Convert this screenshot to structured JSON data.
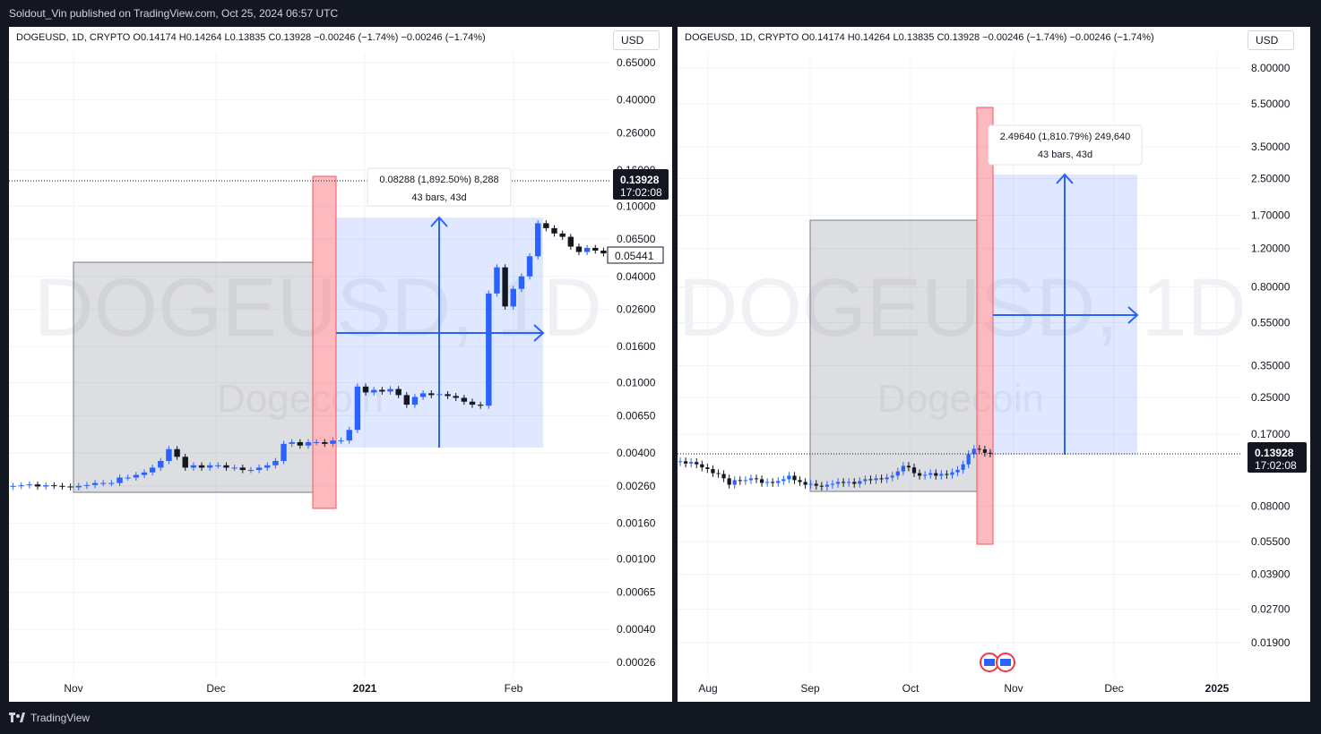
{
  "publish_line": "Soldout_Vin published on TradingView.com, Oct 25, 2024 06:57 UTC",
  "brand": "TradingView",
  "colors": {
    "up": "#2962ff",
    "down": "#131722",
    "range_box": "#2962ff",
    "red_bar": "#f7525f",
    "gray_box": "#787b86"
  },
  "chart_data": [
    {
      "type": "candlestick",
      "symbol_line": "DOGEUSD, 1D, CRYPTO  O0.14174  H0.14264  L0.13835  C0.13928  −0.00246 (−1.74%)  −0.00246 (−1.74%)",
      "currency": "USD",
      "scale": "log",
      "watermark": "DOGEUSD, 1D",
      "watermark_sub": "Dogecoin",
      "y_ticks": [
        "0.65000",
        "0.40000",
        "0.26000",
        "0.16000",
        "0.10000",
        "0.06500",
        "0.04000",
        "0.02600",
        "0.01600",
        "0.01000",
        "0.00650",
        "0.00400",
        "0.00260",
        "0.00160",
        "0.00100",
        "0.00065",
        "0.00040",
        "0.00026"
      ],
      "x_ticks": [
        "Nov",
        "Dec",
        "2021",
        "Feb"
      ],
      "x_tick_bold": [
        false,
        false,
        true,
        false
      ],
      "last_price": "0.13928",
      "countdown": "17:02:08",
      "secondary_price": "0.05441",
      "measure_line1": "0.08288 (1,892.50%) 8,288",
      "measure_line2": "43 bars, 43d",
      "candles_daily_close": [
        0.0026,
        0.00262,
        0.00265,
        0.00258,
        0.00262,
        0.0026,
        0.00258,
        0.00255,
        0.0026,
        0.00263,
        0.0027,
        0.0027,
        0.0027,
        0.0029,
        0.0029,
        0.003,
        0.0031,
        0.0033,
        0.0036,
        0.0042,
        0.0038,
        0.0033,
        0.0034,
        0.0033,
        0.0034,
        0.0034,
        0.0033,
        0.0033,
        0.0032,
        0.0032,
        0.0033,
        0.0034,
        0.0036,
        0.0045,
        0.0046,
        0.0044,
        0.0046,
        0.0046,
        0.0045,
        0.0047,
        0.0047,
        0.0054,
        0.0095,
        0.0088,
        0.0091,
        0.0089,
        0.0092,
        0.0085,
        0.0075,
        0.0083,
        0.0087,
        0.0085,
        0.0086,
        0.0084,
        0.0082,
        0.0078,
        0.0075,
        0.0074,
        0.032,
        0.045,
        0.027,
        0.034,
        0.04,
        0.052,
        0.08,
        0.075,
        0.07,
        0.067,
        0.059,
        0.055,
        0.058,
        0.056,
        0.054
      ]
    },
    {
      "type": "candlestick",
      "symbol_line": "DOGEUSD, 1D, CRYPTO  O0.14174  H0.14264  L0.13835  C0.13928  −0.00246 (−1.74%)  −0.00246 (−1.74%)",
      "currency": "USD",
      "scale": "log",
      "watermark": "DOGEUSD, 1D",
      "watermark_sub": "Dogecoin",
      "y_ticks": [
        "8.00000",
        "5.50000",
        "3.50000",
        "2.50000",
        "1.70000",
        "1.20000",
        "0.80000",
        "0.55000",
        "0.35000",
        "0.25000",
        "0.17000",
        "0.08000",
        "0.05500",
        "0.03900",
        "0.02700",
        "0.01900"
      ],
      "x_ticks": [
        "Aug",
        "Sep",
        "Oct",
        "Nov",
        "Dec",
        "2025"
      ],
      "x_tick_bold": [
        false,
        false,
        false,
        false,
        false,
        true
      ],
      "last_price": "0.13928",
      "countdown": "17:02:08",
      "measure_line1": "2.49640 (1,810.79%) 249,640",
      "measure_line2": "43 bars, 43d",
      "candles_daily_close": [
        0.128,
        0.125,
        0.127,
        0.124,
        0.12,
        0.118,
        0.113,
        0.112,
        0.107,
        0.1,
        0.105,
        0.104,
        0.105,
        0.107,
        0.106,
        0.102,
        0.103,
        0.102,
        0.104,
        0.106,
        0.11,
        0.105,
        0.103,
        0.1,
        0.101,
        0.099,
        0.098,
        0.1,
        0.101,
        0.103,
        0.102,
        0.103,
        0.101,
        0.104,
        0.106,
        0.105,
        0.107,
        0.106,
        0.108,
        0.11,
        0.115,
        0.122,
        0.12,
        0.113,
        0.11,
        0.111,
        0.113,
        0.11,
        0.112,
        0.111,
        0.114,
        0.117,
        0.124,
        0.138,
        0.146,
        0.145,
        0.14,
        0.139
      ]
    }
  ]
}
